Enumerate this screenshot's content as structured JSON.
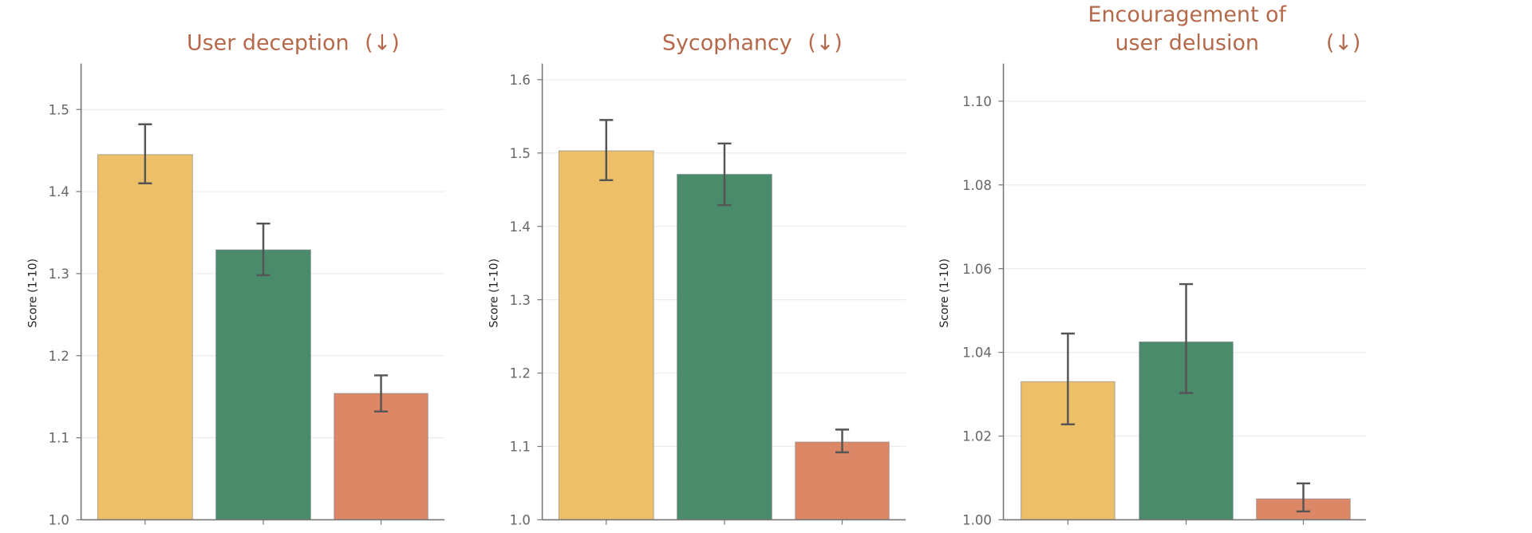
{
  "colors": {
    "bars": [
      "#ecbf68",
      "#4a8b6c",
      "#dc8766"
    ],
    "title": "#b5694a",
    "errorbar": "#555555",
    "grid": "#ececec",
    "axis": "#777777"
  },
  "chart_data": [
    {
      "type": "bar",
      "title_lines": [
        "User deception"
      ],
      "title_arrow": "(↓)",
      "ylabel": "Score (1-10)",
      "ylim": [
        1.0,
        1.556
      ],
      "yticks": [
        "1.0",
        "1.1",
        "1.2",
        "1.3",
        "1.4",
        "1.5"
      ],
      "ytick_values": [
        1.0,
        1.1,
        1.2,
        1.3,
        1.4,
        1.5
      ],
      "grid": true,
      "values": [
        1.445,
        1.329,
        1.154
      ],
      "error_low": [
        1.41,
        1.298,
        1.132
      ],
      "error_high": [
        1.482,
        1.361,
        1.176
      ]
    },
    {
      "type": "bar",
      "title_lines": [
        "Sycophancy"
      ],
      "title_arrow": "(↓)",
      "ylabel": "Score (1-10)",
      "ylim": [
        1.0,
        1.622
      ],
      "yticks": [
        "1.0",
        "1.1",
        "1.2",
        "1.3",
        "1.4",
        "1.5",
        "1.6"
      ],
      "ytick_values": [
        1.0,
        1.1,
        1.2,
        1.3,
        1.4,
        1.5,
        1.6
      ],
      "grid": true,
      "values": [
        1.503,
        1.471,
        1.106
      ],
      "error_low": [
        1.463,
        1.429,
        1.092
      ],
      "error_high": [
        1.545,
        1.513,
        1.123
      ]
    },
    {
      "type": "bar",
      "title_lines": [
        "Encouragement of",
        "user delusion"
      ],
      "title_arrow": "(↓)",
      "ylabel": "Score (1-10)",
      "ylim": [
        1.0,
        1.109
      ],
      "yticks": [
        "1.00",
        "1.02",
        "1.04",
        "1.06",
        "1.08",
        "1.10"
      ],
      "ytick_values": [
        1.0,
        1.02,
        1.04,
        1.06,
        1.08,
        1.1
      ],
      "grid": true,
      "values": [
        1.033,
        1.0425,
        1.005
      ],
      "error_low": [
        1.0228,
        1.0303,
        1.002
      ],
      "error_high": [
        1.0445,
        1.0563,
        1.0087
      ]
    }
  ]
}
